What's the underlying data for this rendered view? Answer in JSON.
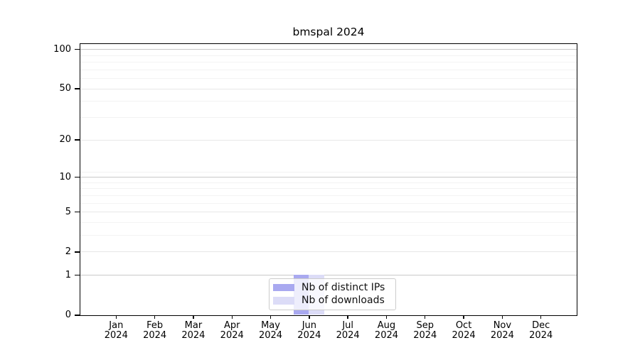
{
  "chart_data": {
    "type": "bar",
    "title": "bmspal 2024",
    "categories": [
      "Jan",
      "Feb",
      "Mar",
      "Apr",
      "May",
      "Jun",
      "Jul",
      "Aug",
      "Sep",
      "Oct",
      "Nov",
      "Dec"
    ],
    "x_tick_second_line": "2024",
    "series": [
      {
        "name": "Nb of distinct IPs",
        "color": "#a9a9f0",
        "values": [
          0,
          0,
          0,
          0,
          0,
          1,
          0,
          0,
          0,
          0,
          0,
          0
        ]
      },
      {
        "name": "Nb of downloads",
        "color": "#dcdcf7",
        "values": [
          0,
          0,
          0,
          0,
          0,
          1,
          0,
          0,
          0,
          0,
          0,
          0
        ]
      }
    ],
    "y_scale": "log1p",
    "ylim": [
      0,
      110
    ],
    "y_major_ticks": [
      0,
      1,
      2,
      5,
      10,
      20,
      50,
      100
    ],
    "y_minor_gridlines": [
      3,
      4,
      6,
      7,
      8,
      9,
      11,
      30,
      40,
      60,
      70,
      80,
      90
    ],
    "emphasized_gridlines": [
      1,
      10,
      100
    ],
    "grid": "horizontal",
    "legend_position": "lower center",
    "xlabel": "",
    "ylabel": ""
  }
}
